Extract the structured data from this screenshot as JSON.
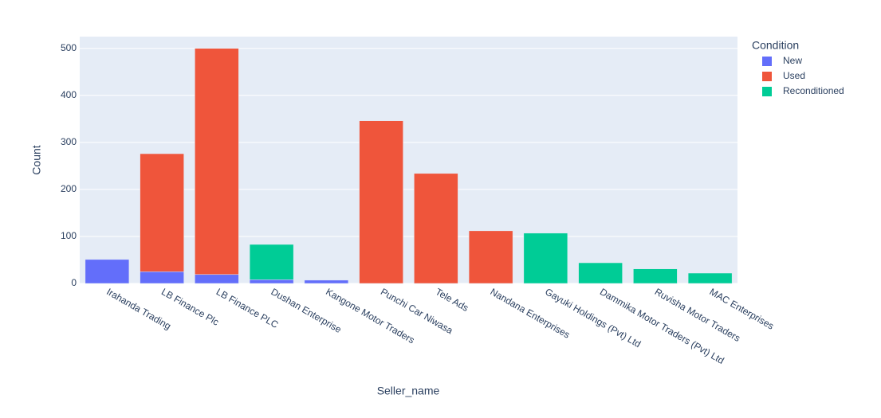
{
  "chart_data": {
    "type": "bar",
    "stacked": true,
    "x_label": "Seller_name",
    "y_label": "Count",
    "legend_title": "Condition",
    "legend_position": "right",
    "categories": [
      "Irahanda Trading",
      "LB Finance Plc",
      "LB Finance PLC",
      "Dushan Enterprise",
      "Kangone Motor Traders",
      "Punchi Car Niwasa",
      "Tele Ads",
      "Nandana Enterprises",
      "Gayuki Holdings (Pvt) Ltd",
      "Dammika Motor Traders (Pvt) Ltd",
      "Ruvisha Motor Traders",
      "MAC Enterprises"
    ],
    "series": [
      {
        "name": "New",
        "color": "#636efa",
        "values": [
          51,
          25,
          19,
          8,
          7,
          null,
          null,
          null,
          null,
          null,
          null,
          null
        ]
      },
      {
        "name": "Used",
        "color": "#EF553B",
        "values": [
          null,
          251,
          481,
          null,
          null,
          346,
          234,
          112,
          null,
          null,
          null,
          null
        ]
      },
      {
        "name": "Reconditioned",
        "color": "#00cc96",
        "values": [
          null,
          null,
          null,
          75,
          null,
          null,
          null,
          null,
          107,
          44,
          31,
          22
        ]
      }
    ],
    "ylim": [
      0,
      525
    ],
    "yticks": [
      0,
      100,
      200,
      300,
      400,
      500
    ],
    "grid": true
  }
}
